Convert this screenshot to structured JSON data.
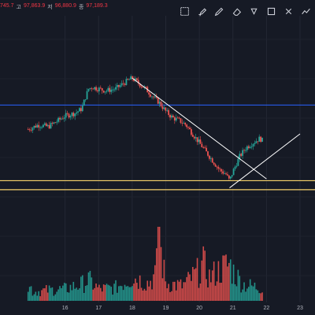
{
  "ohlc": {
    "open_value": "745.7",
    "high_label": "고",
    "high_value": "97,863.9",
    "low_label": "저",
    "low_value": "96,880.9",
    "close_label": "종",
    "close_value": "97,189.3"
  },
  "toolbar": [
    {
      "name": "layout-grid-icon"
    },
    {
      "name": "brush-icon"
    },
    {
      "name": "highlighter-icon"
    },
    {
      "name": "eraser-icon"
    },
    {
      "name": "arrow-down-icon"
    },
    {
      "name": "fullscreen-icon"
    },
    {
      "name": "close-icon"
    },
    {
      "name": "chart-pattern-icon"
    }
  ],
  "colors": {
    "background": "#161a25",
    "up": "#26a69a",
    "down": "#ef5350",
    "blue_level": "#2962ff",
    "yellow_level": "#f7d26b",
    "trendline": "#ffffff"
  },
  "x_axis": {
    "labels": [
      "16",
      "17",
      "18",
      "19",
      "20",
      "21",
      "22",
      "23"
    ]
  },
  "chart_data": {
    "type": "candlestick",
    "x_ticks": [
      "16",
      "17",
      "18",
      "19",
      "20",
      "21",
      "22",
      "23"
    ],
    "price_path": [
      [
        14.9,
        0.15
      ],
      [
        15.2,
        0.2
      ],
      [
        15.5,
        0.18
      ],
      [
        15.8,
        0.25
      ],
      [
        16.0,
        0.3
      ],
      [
        16.3,
        0.33
      ],
      [
        16.5,
        0.38
      ],
      [
        16.6,
        0.5
      ],
      [
        16.7,
        0.6
      ],
      [
        16.8,
        0.62
      ],
      [
        17.0,
        0.6
      ],
      [
        17.2,
        0.58
      ],
      [
        17.5,
        0.6
      ],
      [
        17.7,
        0.65
      ],
      [
        17.9,
        0.7
      ],
      [
        18.0,
        0.72
      ],
      [
        18.2,
        0.66
      ],
      [
        18.4,
        0.6
      ],
      [
        18.6,
        0.52
      ],
      [
        18.8,
        0.45
      ],
      [
        19.0,
        0.35
      ],
      [
        19.2,
        0.28
      ],
      [
        19.4,
        0.25
      ],
      [
        19.6,
        0.2
      ],
      [
        19.8,
        0.1
      ],
      [
        20.0,
        0.0
      ],
      [
        20.2,
        -0.1
      ],
      [
        20.4,
        -0.2
      ],
      [
        20.6,
        -0.3
      ],
      [
        20.8,
        -0.35
      ],
      [
        20.9,
        -0.42
      ],
      [
        21.0,
        -0.32
      ],
      [
        21.2,
        -0.15
      ],
      [
        21.4,
        -0.05
      ],
      [
        21.6,
        0.0
      ],
      [
        21.8,
        0.05
      ],
      [
        21.9,
        0.02
      ]
    ],
    "volume": [
      [
        15.0,
        0.15
      ],
      [
        15.5,
        0.18
      ],
      [
        16.0,
        0.2
      ],
      [
        16.5,
        0.28
      ],
      [
        16.7,
        0.35
      ],
      [
        17.0,
        0.2
      ],
      [
        17.5,
        0.22
      ],
      [
        18.0,
        0.4
      ],
      [
        18.5,
        0.3
      ],
      [
        18.7,
        0.45
      ],
      [
        18.8,
        1.0
      ],
      [
        19.0,
        0.3
      ],
      [
        19.5,
        0.25
      ],
      [
        20.0,
        0.5
      ],
      [
        20.1,
        0.62
      ],
      [
        20.3,
        0.4
      ],
      [
        20.7,
        0.55
      ],
      [
        20.9,
        0.62
      ],
      [
        21.0,
        0.5
      ],
      [
        21.3,
        0.28
      ],
      [
        21.6,
        0.24
      ],
      [
        21.9,
        0.22
      ]
    ],
    "levels": {
      "blue": 0.42,
      "yellow_upper": -0.42,
      "yellow_lower": -0.52
    },
    "trendlines": [
      {
        "from": [
          18.0,
          0.72
        ],
        "to": [
          22.0,
          -0.4
        ]
      },
      {
        "from": [
          20.9,
          -0.5
        ],
        "to": [
          23.0,
          0.1
        ]
      }
    ]
  }
}
